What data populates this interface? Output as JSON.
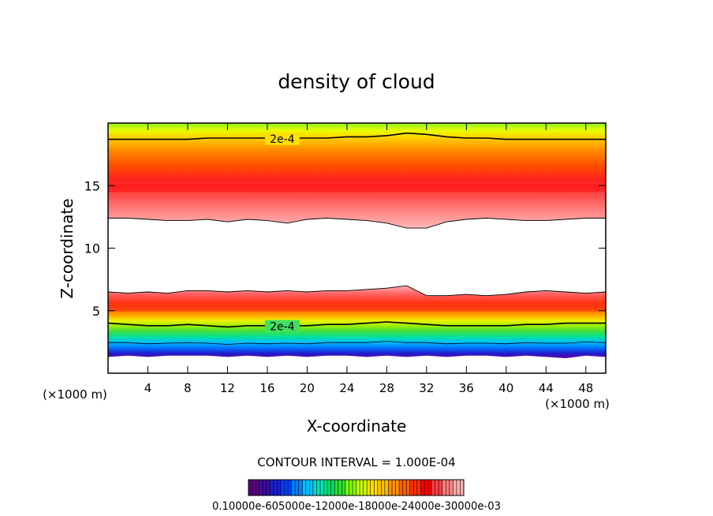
{
  "chart_data": {
    "type": "heatmap",
    "title": "density of cloud",
    "xlabel": "X-coordinate",
    "ylabel": "Z-coordinate",
    "x_unit": "(×1000 m)",
    "y_unit": "(×1000 m)",
    "xlim": [
      0,
      50
    ],
    "ylim": [
      0,
      20
    ],
    "x_ticks": [
      4,
      8,
      12,
      16,
      20,
      24,
      28,
      32,
      36,
      40,
      44,
      48
    ],
    "y_ticks": [
      5,
      10,
      15
    ],
    "contour_interval_text": "CONTOUR INTERVAL = 1.000E-04",
    "contour_labels": [
      {
        "text": "2e-4",
        "x": 17.5,
        "z": 18.75
      },
      {
        "text": "2e-4",
        "x": 17.5,
        "z": 3.75
      }
    ],
    "colorbar_tick_text": "0.10000e-605000e-12000e-18000e-24000e-30000e-03",
    "colorbar_colors": [
      "#5a0080",
      "#3a0aa0",
      "#1a20d0",
      "#0040ff",
      "#0080ff",
      "#00c0ff",
      "#00e0c0",
      "#00e070",
      "#30e030",
      "#80ff00",
      "#c8ff00",
      "#ffe000",
      "#ffc000",
      "#ff9000",
      "#ff6000",
      "#ff3000",
      "#ff0000",
      "#ff4040",
      "#ff8080",
      "#ffb0b0"
    ],
    "upper_layer": {
      "z_bottom": [
        12.4,
        12.4,
        12.3,
        12.2,
        12.2,
        12.3,
        12.1,
        12.3,
        12.2,
        12.0,
        12.3,
        12.4,
        12.3,
        12.2,
        12.0,
        11.6,
        11.6,
        12.1,
        12.3,
        12.4,
        12.3,
        12.2,
        12.2,
        12.3,
        12.4,
        12.4
      ],
      "z_contour": [
        18.7,
        18.7,
        18.7,
        18.7,
        18.7,
        18.8,
        18.8,
        18.8,
        18.8,
        18.8,
        18.8,
        18.8,
        18.9,
        18.9,
        19.0,
        19.2,
        19.1,
        18.9,
        18.8,
        18.8,
        18.7,
        18.7,
        18.7,
        18.7,
        18.7,
        18.7
      ],
      "z_peak": 14.8
    },
    "lower_layer": {
      "z_top": [
        6.5,
        6.4,
        6.5,
        6.4,
        6.6,
        6.6,
        6.5,
        6.6,
        6.5,
        6.6,
        6.5,
        6.6,
        6.6,
        6.7,
        6.8,
        7.0,
        6.2,
        6.2,
        6.3,
        6.2,
        6.3,
        6.5,
        6.6,
        6.5,
        6.4,
        6.5
      ],
      "z_contour": [
        4.0,
        3.9,
        3.8,
        3.8,
        3.9,
        3.8,
        3.7,
        3.8,
        3.8,
        3.8,
        3.8,
        3.9,
        3.9,
        4.0,
        4.1,
        4.0,
        3.9,
        3.8,
        3.8,
        3.8,
        3.8,
        3.9,
        3.9,
        4.0,
        4.0,
        4.0
      ],
      "z_bottom": [
        1.3,
        1.4,
        1.3,
        1.4,
        1.4,
        1.4,
        1.3,
        1.4,
        1.3,
        1.4,
        1.3,
        1.4,
        1.4,
        1.3,
        1.4,
        1.3,
        1.4,
        1.3,
        1.4,
        1.4,
        1.3,
        1.4,
        1.3,
        1.2,
        1.4,
        1.3
      ],
      "z_peak": 5.2
    }
  }
}
